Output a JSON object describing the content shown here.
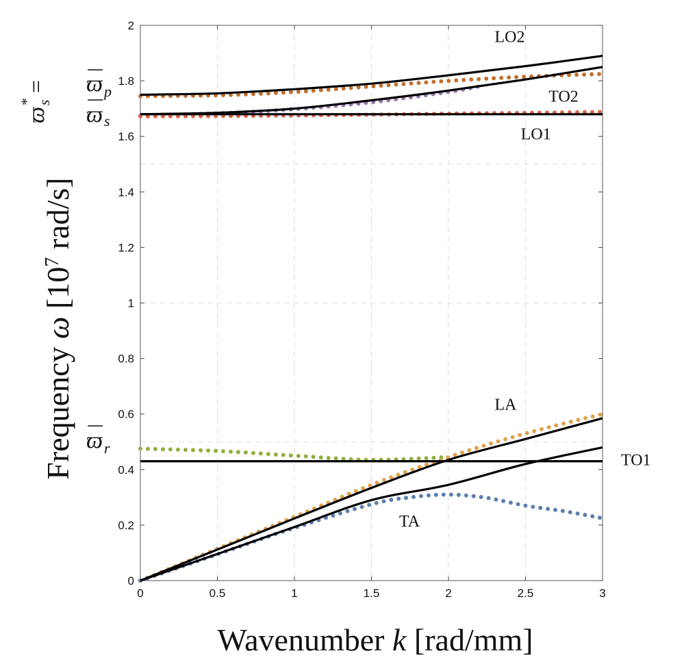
{
  "chart_data": {
    "type": "line",
    "xlabel_prefix": "Wavenumber ",
    "xlabel_var": "k",
    "xlabel_unit": " [rad/mm]",
    "ylabel_prefix": "Frequency ",
    "ylabel_var": "ω",
    "ylabel_unit_a": " [10",
    "ylabel_unit_exp": "7",
    "ylabel_unit_b": " rad/s]",
    "xlim": [
      0,
      3
    ],
    "ylim": [
      0,
      2
    ],
    "x_ticks": [
      "0",
      "0.5",
      "1",
      "1.5",
      "2",
      "2.5",
      "3"
    ],
    "y_ticks": [
      "0",
      "0.2",
      "0.4",
      "0.6",
      "0.8",
      "1",
      "1.2",
      "1.4",
      "1.6",
      "1.8",
      "2"
    ],
    "x_tick_values": [
      0,
      0.5,
      1,
      1.5,
      2,
      2.5,
      3
    ],
    "y_tick_values": [
      0,
      0.2,
      0.4,
      0.6,
      0.8,
      1,
      1.2,
      1.4,
      1.6,
      1.8,
      2
    ],
    "grid": true,
    "series": [
      {
        "name": "LO2",
        "style": "solid",
        "color": "#000000",
        "x": [
          0,
          0.5,
          1,
          1.5,
          2,
          2.5,
          3
        ],
        "y": [
          1.75,
          1.755,
          1.77,
          1.79,
          1.82,
          1.853,
          1.89
        ]
      },
      {
        "name": "TO2",
        "style": "solid",
        "color": "#000000",
        "x": [
          0,
          0.5,
          1,
          1.5,
          2,
          2.5,
          3
        ],
        "y": [
          1.68,
          1.685,
          1.7,
          1.73,
          1.765,
          1.805,
          1.85
        ]
      },
      {
        "name": "LO1",
        "style": "solid",
        "color": "#000000",
        "x": [
          0,
          3
        ],
        "y": [
          1.68,
          1.68
        ]
      },
      {
        "name": "TO1",
        "style": "solid",
        "color": "#000000",
        "x": [
          0,
          3
        ],
        "y": [
          0.43,
          0.43
        ]
      },
      {
        "name": "LA",
        "style": "solid",
        "color": "#000000",
        "x": [
          0,
          0.5,
          1,
          1.5,
          2,
          2.5,
          3
        ],
        "y": [
          0,
          0.112,
          0.224,
          0.334,
          0.435,
          0.51,
          0.585
        ]
      },
      {
        "name": "TA",
        "style": "solid",
        "color": "#000000",
        "x": [
          0,
          0.5,
          1,
          1.5,
          2,
          2.5,
          3
        ],
        "y": [
          0,
          0.096,
          0.193,
          0.29,
          0.345,
          0.42,
          0.48
        ]
      },
      {
        "name": "LO2 dotted",
        "style": "dotted",
        "color": "#c0702f",
        "x": [
          0,
          0.5,
          1,
          1.5,
          2,
          2.5,
          3
        ],
        "y": [
          1.745,
          1.748,
          1.76,
          1.78,
          1.8,
          1.815,
          1.825
        ]
      },
      {
        "name": "TO2 dotted",
        "style": "dotted",
        "color": "#8f77b2",
        "x": [
          0,
          0.5,
          1,
          1.5,
          2,
          2.2
        ],
        "y": [
          1.675,
          1.683,
          1.698,
          1.723,
          1.76,
          1.78
        ]
      },
      {
        "name": "LO1 dotted",
        "style": "dotted",
        "color": "#e06448",
        "x": [
          0,
          0.5,
          1,
          1.5,
          2,
          2.5,
          3
        ],
        "y": [
          1.672,
          1.673,
          1.675,
          1.678,
          1.682,
          1.685,
          1.688
        ]
      },
      {
        "name": "LA dotted",
        "style": "dotted",
        "color": "#e0a14a",
        "x": [
          0,
          0.5,
          1,
          1.5,
          2,
          2.5,
          3
        ],
        "y": [
          0,
          0.115,
          0.23,
          0.345,
          0.445,
          0.53,
          0.6
        ]
      },
      {
        "name": "TO1 dotted",
        "style": "dotted",
        "color": "#8fb03e",
        "x": [
          0,
          0.5,
          1,
          1.5,
          2
        ],
        "y": [
          0.475,
          0.467,
          0.45,
          0.435,
          0.445
        ]
      },
      {
        "name": "TA dotted",
        "style": "dotted",
        "color": "#5c7fb0",
        "x": [
          0,
          0.5,
          1,
          1.5,
          1.75,
          2,
          2.25,
          2.5,
          2.75,
          3
        ],
        "y": [
          0,
          0.095,
          0.19,
          0.275,
          0.3,
          0.31,
          0.298,
          0.27,
          0.25,
          0.225
        ]
      }
    ],
    "annotations": [
      {
        "text": "LO2",
        "x": 2.3,
        "y": 1.94
      },
      {
        "text": "TO2",
        "x": 2.65,
        "y": 1.725
      },
      {
        "text": "LO1",
        "x": 2.47,
        "y": 1.59
      },
      {
        "text": "LA",
        "x": 2.3,
        "y": 0.615
      },
      {
        "text": "TO1",
        "x": 3.12,
        "y": 0.415
      },
      {
        "text": "TA",
        "x": 1.68,
        "y": 0.195
      }
    ],
    "y_markers": [
      {
        "label": "ϖ",
        "sub": "p",
        "value": 1.75
      },
      {
        "label": "ϖ",
        "sub": "s",
        "value": 1.68
      },
      {
        "label": "ϖ",
        "sub": "s",
        "sup": "*",
        "eq": "=",
        "value": 1.68
      },
      {
        "label": "ϖ",
        "sub": "r",
        "value": 0.49
      }
    ]
  }
}
